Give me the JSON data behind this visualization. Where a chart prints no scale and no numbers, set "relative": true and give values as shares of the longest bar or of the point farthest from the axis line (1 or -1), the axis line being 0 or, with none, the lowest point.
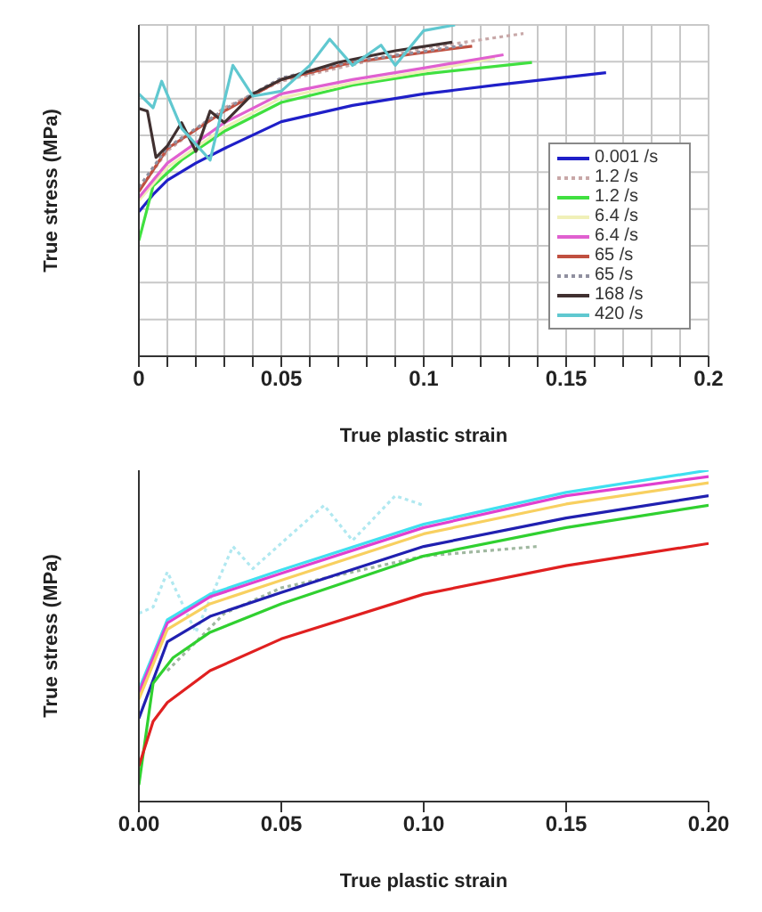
{
  "chart_data": [
    {
      "type": "line",
      "relative": true,
      "xlabel": "True plastic strain",
      "ylabel": "True stress  (MPa)",
      "xlim": [
        0,
        0.2
      ],
      "xticks": [
        0,
        {
          "value": 0.01,
          "label": null
        },
        {
          "value": 0.02,
          "label": null
        },
        {
          "value": 0.03,
          "label": null
        },
        {
          "value": 0.04,
          "label": null
        },
        0.05,
        {
          "value": 0.06,
          "label": null
        },
        {
          "value": 0.07,
          "label": null
        },
        {
          "value": 0.08,
          "label": null
        },
        {
          "value": 0.09,
          "label": null
        },
        0.1,
        {
          "value": 0.11,
          "label": null
        },
        {
          "value": 0.12,
          "label": null
        },
        {
          "value": 0.13,
          "label": null
        },
        {
          "value": 0.14,
          "label": null
        },
        0.15,
        {
          "value": 0.16,
          "label": null
        },
        {
          "value": 0.17,
          "label": null
        },
        {
          "value": 0.18,
          "label": null
        },
        {
          "value": 0.19,
          "label": null
        },
        0.2
      ],
      "grid": true,
      "legend": "right",
      "marker": "none",
      "series": [
        {
          "name": "0.001 /s",
          "color": "#1f1fc8",
          "line_style": "solid",
          "x": [
            0,
            0.005,
            0.01,
            0.02,
            0.03,
            0.05,
            0.075,
            0.1,
            0.125,
            0.164
          ],
          "values": [
            0.436,
            0.488,
            0.531,
            0.583,
            0.627,
            0.708,
            0.757,
            0.792,
            0.818,
            0.856
          ]
        },
        {
          "name": "1.2 /s",
          "color": "#c8a8a8",
          "line_style": "dotted",
          "x": [
            0,
            0.01,
            0.03,
            0.05,
            0.075,
            0.1,
            0.135
          ],
          "values": [
            0.5,
            0.62,
            0.75,
            0.83,
            0.88,
            0.93,
            0.974
          ]
        },
        {
          "name": "1.2 /s",
          "color": "#40e040",
          "line_style": "solid",
          "x": [
            0,
            0.005,
            0.015,
            0.03,
            0.05,
            0.075,
            0.1,
            0.138
          ],
          "values": [
            0.349,
            0.514,
            0.592,
            0.679,
            0.766,
            0.818,
            0.852,
            0.887
          ]
        },
        {
          "name": "6.4 /s",
          "color": "#f0f0b8",
          "line_style": "solid",
          "x": [
            0,
            0.01,
            0.03,
            0.05,
            0.075,
            0.1,
            0.125
          ],
          "values": [
            0.47,
            0.57,
            0.69,
            0.78,
            0.825,
            0.86,
            0.9
          ]
        },
        {
          "name": "6.4 /s",
          "color": "#e060d0",
          "line_style": "solid",
          "x": [
            0,
            0.01,
            0.03,
            0.05,
            0.075,
            0.1,
            0.128
          ],
          "values": [
            0.479,
            0.583,
            0.705,
            0.792,
            0.835,
            0.87,
            0.91
          ]
        },
        {
          "name": "65 /s",
          "color": "#c05040",
          "line_style": "solid",
          "x": [
            0,
            0.01,
            0.03,
            0.05,
            0.075,
            0.1,
            0.117
          ],
          "values": [
            0.497,
            0.627,
            0.74,
            0.835,
            0.887,
            0.917,
            0.936
          ]
        },
        {
          "name": "65 /s",
          "color": "#9090a0",
          "line_style": "dotted",
          "x": [
            0,
            0.01,
            0.03,
            0.05,
            0.075,
            0.1,
            0.115
          ],
          "values": [
            0.51,
            0.63,
            0.745,
            0.84,
            0.89,
            0.92,
            0.94
          ]
        },
        {
          "name": "168 /s",
          "color": "#403030",
          "line_style": "solid",
          "x": [
            0,
            0.003,
            0.006,
            0.01,
            0.015,
            0.02,
            0.025,
            0.03,
            0.04,
            0.05,
            0.07,
            0.09,
            0.11
          ],
          "values": [
            0.748,
            0.74,
            0.6,
            0.635,
            0.705,
            0.618,
            0.74,
            0.705,
            0.792,
            0.835,
            0.887,
            0.922,
            0.948
          ]
        },
        {
          "name": "420 /s",
          "color": "#60c8d0",
          "line_style": "solid",
          "x": [
            0,
            0.005,
            0.008,
            0.015,
            0.025,
            0.033,
            0.04,
            0.05,
            0.06,
            0.067,
            0.075,
            0.085,
            0.09,
            0.1,
            0.111
          ],
          "values": [
            0.792,
            0.75,
            0.83,
            0.688,
            0.592,
            0.878,
            0.785,
            0.8,
            0.878,
            0.957,
            0.878,
            0.939,
            0.878,
            0.983,
            1
          ]
        }
      ]
    },
    {
      "type": "line",
      "relative": true,
      "xlabel": "True plastic strain",
      "ylabel": "True stress (MPa)",
      "xlim": [
        0,
        0.2
      ],
      "xticks": [
        {
          "value": 0,
          "label": "0.00"
        },
        {
          "value": 0.05,
          "label": "0.05"
        },
        {
          "value": 0.1,
          "label": "0.10"
        },
        {
          "value": 0.15,
          "label": "0.15"
        },
        {
          "value": 0.2,
          "label": "0.20"
        }
      ],
      "marker": "none",
      "series": [
        {
          "color": "#b0e8f0",
          "line_style": "dotted",
          "x": [
            0,
            0.005,
            0.01,
            0.02,
            0.033,
            0.04,
            0.055,
            0.065,
            0.075,
            0.09,
            0.1
          ],
          "values": [
            0.568,
            0.587,
            0.693,
            0.511,
            0.77,
            0.703,
            0.818,
            0.894,
            0.788,
            0.923,
            0.894
          ]
        },
        {
          "color": "#a0b8a0",
          "line_style": "dotted",
          "x": [
            0.01,
            0.03,
            0.05,
            0.1,
            0.14
          ],
          "values": [
            0.395,
            0.568,
            0.645,
            0.741,
            0.77
          ]
        },
        {
          "color": "#40e0f0",
          "line_style": "solid",
          "x": [
            0,
            0.01,
            0.025,
            0.05,
            0.1,
            0.15,
            0.2
          ],
          "values": [
            0.338,
            0.549,
            0.626,
            0.699,
            0.837,
            0.933,
            1
          ]
        },
        {
          "color": "#e040d0",
          "line_style": "solid",
          "x": [
            0,
            0.01,
            0.025,
            0.05,
            0.1,
            0.15,
            0.2
          ],
          "values": [
            0.328,
            0.539,
            0.618,
            0.689,
            0.827,
            0.923,
            0.981
          ]
        },
        {
          "color": "#f8d060",
          "line_style": "solid",
          "x": [
            0,
            0.01,
            0.025,
            0.05,
            0.1,
            0.15,
            0.2
          ],
          "values": [
            0.309,
            0.52,
            0.597,
            0.668,
            0.808,
            0.898,
            0.962
          ]
        },
        {
          "color": "#2020b0",
          "line_style": "solid",
          "x": [
            0,
            0.01,
            0.025,
            0.05,
            0.1,
            0.15,
            0.2
          ],
          "values": [
            0.251,
            0.482,
            0.559,
            0.631,
            0.77,
            0.856,
            0.923
          ]
        },
        {
          "color": "#30d030",
          "line_style": "solid",
          "x": [
            0,
            0.005,
            0.012,
            0.025,
            0.05,
            0.1,
            0.15,
            0.2
          ],
          "values": [
            0.05,
            0.357,
            0.434,
            0.511,
            0.597,
            0.741,
            0.827,
            0.894
          ]
        },
        {
          "color": "#e02020",
          "line_style": "solid",
          "x": [
            0,
            0.005,
            0.01,
            0.025,
            0.05,
            0.1,
            0.15,
            0.2
          ],
          "values": [
            0.107,
            0.242,
            0.299,
            0.395,
            0.491,
            0.626,
            0.712,
            0.779
          ]
        }
      ]
    }
  ]
}
